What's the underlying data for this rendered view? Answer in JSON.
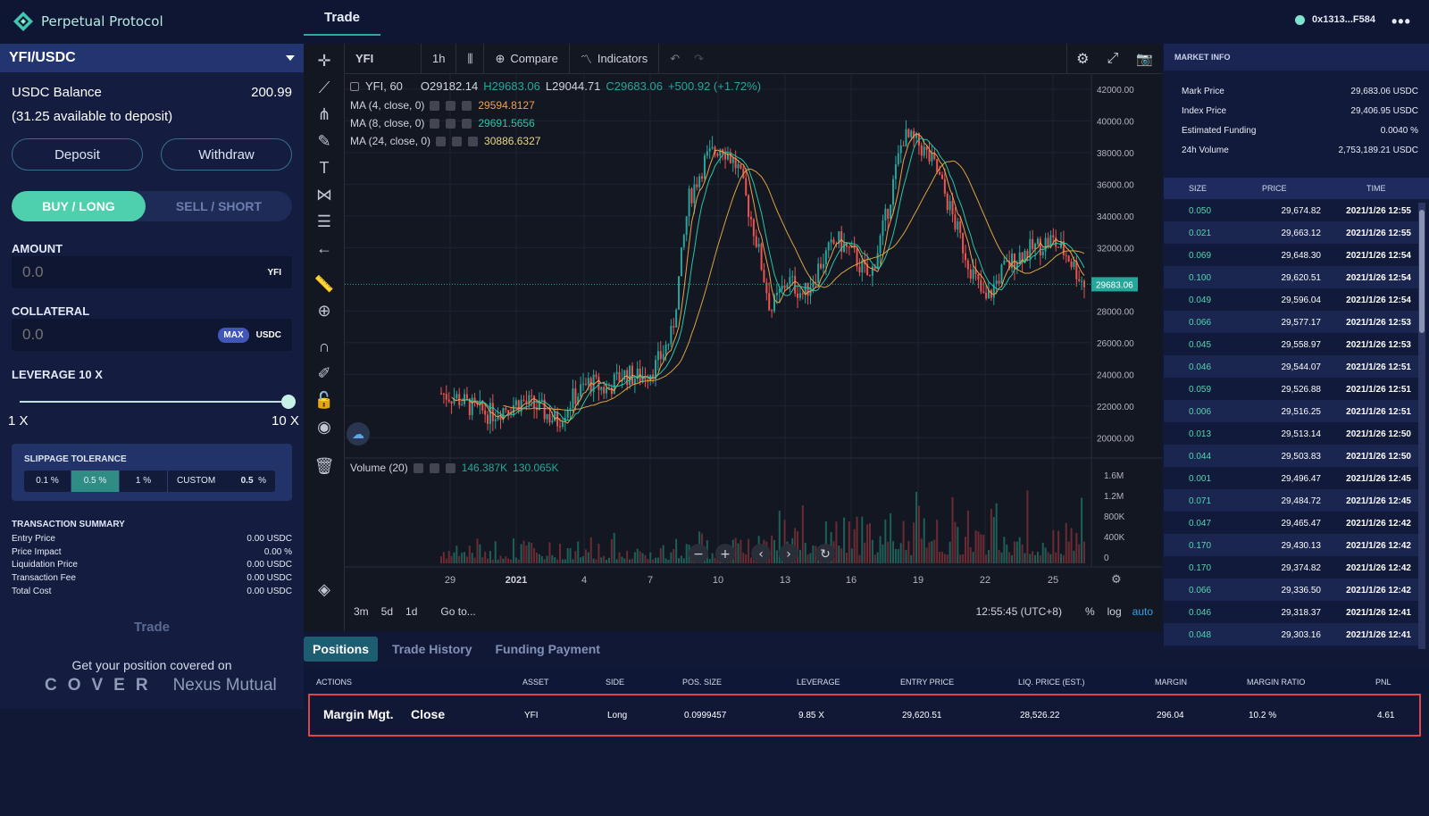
{
  "brand": {
    "name": "Perpetual Protocol"
  },
  "nav": {
    "tab": "Trade"
  },
  "wallet": {
    "address": "0x1313...F584",
    "more": "•••"
  },
  "left": {
    "pair": "YFI/USDC",
    "balance_label": "USDC Balance",
    "balance_value": "200.99",
    "available": "(31.25 available to deposit)",
    "deposit": "Deposit",
    "withdraw": "Withdraw",
    "buy": "BUY / LONG",
    "sell": "SELL / SHORT",
    "amount_label": "AMOUNT",
    "amount_placeholder": "0.0",
    "amount_unit": "YFI",
    "collateral_label": "COLLATERAL",
    "collateral_placeholder": "0.0",
    "max": "MAX",
    "collateral_unit": "USDC",
    "leverage_label": "LEVERAGE 10 X",
    "leverage_min": "1 X",
    "leverage_max": "10 X",
    "leverage_value": 1.0,
    "slippage_title": "SLIPPAGE TOLERANCE",
    "slippage_opts": [
      "0.1 %",
      "0.5 %",
      "1 %",
      "CUSTOM"
    ],
    "slippage_custom_value": "0.5",
    "slippage_custom_unit": "%",
    "tx_title": "TRANSACTION SUMMARY",
    "tx": [
      {
        "label": "Entry Price",
        "value": "0.00 USDC"
      },
      {
        "label": "Price Impact",
        "value": "0.00 %"
      },
      {
        "label": "Liquidation Price",
        "value": "0.00 USDC"
      },
      {
        "label": "Transaction Fee",
        "value": "0.00 USDC"
      },
      {
        "label": "Total Cost",
        "value": "0.00 USDC"
      }
    ],
    "trade_button": "Trade",
    "cover_text": "Get your position covered on",
    "cover_logo": "COVER",
    "nexus_logo": "Nexus Mutual"
  },
  "chart": {
    "symbol": "YFI",
    "interval": "1h",
    "compare": "Compare",
    "indicators": "Indicators",
    "legend_title": "YFI, 60",
    "o": "O29182.14",
    "h": "H29683.06",
    "l": "L29044.71",
    "c": "C29683.06",
    "change": "+500.92 (+1.72%)",
    "ma1_label": "MA (4, close, 0)",
    "ma1_value": "29594.8127",
    "ma2_label": "MA (8, close, 0)",
    "ma2_value": "29691.5656",
    "ma3_label": "MA (24, close, 0)",
    "ma3_value": "30886.6327",
    "volume_label": "Volume (20)",
    "vol1": "146.387K",
    "vol2": "130.065K",
    "last_price_tag": "29683.06",
    "price_ticks": [
      "42000.00",
      "40000.00",
      "38000.00",
      "36000.00",
      "34000.00",
      "32000.00",
      "28000.00",
      "26000.00",
      "24000.00",
      "22000.00",
      "20000.00"
    ],
    "volume_ticks": [
      "1.6M",
      "1.2M",
      "800K",
      "400K",
      "0"
    ],
    "date_ticks": [
      "29",
      "2021",
      "4",
      "7",
      "10",
      "13",
      "16",
      "19",
      "22",
      "25"
    ],
    "ranges": [
      "3m",
      "5d",
      "1d"
    ],
    "goto": "Go to...",
    "time": "12:55:45 (UTC+8)",
    "pct": "%",
    "log": "log",
    "auto": "auto"
  },
  "chart_data": {
    "type": "candlestick",
    "ylim": [
      19000,
      42500
    ],
    "price_ticks": [
      20000,
      22000,
      24000,
      26000,
      28000,
      32000,
      34000,
      36000,
      38000,
      40000,
      42000
    ],
    "x": [
      "29",
      "2021",
      "4",
      "7",
      "10",
      "13",
      "16",
      "19",
      "22",
      "25"
    ],
    "close_trend": [
      22800,
      22500,
      21800,
      21500,
      22000,
      22300,
      21800,
      21000,
      22500,
      23500,
      23000,
      24000,
      23800,
      24500,
      26500,
      35000,
      37500,
      38500,
      37000,
      33000,
      28000,
      30000,
      29000,
      31000,
      32500,
      31500,
      30000,
      34000,
      39000,
      38500,
      37000,
      34000,
      31000,
      28500,
      30500,
      31500,
      32000,
      32500,
      31500,
      29683.06
    ]
  },
  "market": {
    "title": "MARKET INFO",
    "rows": [
      {
        "label": "Mark Price",
        "value": "29,683.06 USDC"
      },
      {
        "label": "Index Price",
        "value": "29,406.95 USDC"
      },
      {
        "label": "Estimated Funding",
        "value": "0.0040 %"
      },
      {
        "label": "24h Volume",
        "value": "2,753,189.21 USDC"
      }
    ],
    "headers": {
      "size": "SIZE",
      "price": "PRICE",
      "time": "TIME"
    },
    "trades": [
      {
        "size": "0.050",
        "price": "29,674.82",
        "time": "2021/1/26 12:55"
      },
      {
        "size": "0.021",
        "price": "29,663.12",
        "time": "2021/1/26 12:55"
      },
      {
        "size": "0.069",
        "price": "29,648.30",
        "time": "2021/1/26 12:54"
      },
      {
        "size": "0.100",
        "price": "29,620.51",
        "time": "2021/1/26 12:54"
      },
      {
        "size": "0.049",
        "price": "29,596.04",
        "time": "2021/1/26 12:54"
      },
      {
        "size": "0.066",
        "price": "29,577.17",
        "time": "2021/1/26 12:53"
      },
      {
        "size": "0.045",
        "price": "29,558.97",
        "time": "2021/1/26 12:53"
      },
      {
        "size": "0.046",
        "price": "29,544.07",
        "time": "2021/1/26 12:51"
      },
      {
        "size": "0.059",
        "price": "29,526.88",
        "time": "2021/1/26 12:51"
      },
      {
        "size": "0.006",
        "price": "29,516.25",
        "time": "2021/1/26 12:51"
      },
      {
        "size": "0.013",
        "price": "29,513.14",
        "time": "2021/1/26 12:50"
      },
      {
        "size": "0.044",
        "price": "29,503.83",
        "time": "2021/1/26 12:50"
      },
      {
        "size": "0.001",
        "price": "29,496.47",
        "time": "2021/1/26 12:45"
      },
      {
        "size": "0.071",
        "price": "29,484.72",
        "time": "2021/1/26 12:45"
      },
      {
        "size": "0.047",
        "price": "29,465.47",
        "time": "2021/1/26 12:42"
      },
      {
        "size": "0.170",
        "price": "29,430.13",
        "time": "2021/1/26 12:42"
      },
      {
        "size": "0.170",
        "price": "29,374.82",
        "time": "2021/1/26 12:42"
      },
      {
        "size": "0.066",
        "price": "29,336.50",
        "time": "2021/1/26 12:42"
      },
      {
        "size": "0.046",
        "price": "29,318.37",
        "time": "2021/1/26 12:41"
      },
      {
        "size": "0.048",
        "price": "29,303.16",
        "time": "2021/1/26 12:41"
      }
    ]
  },
  "bottom": {
    "tabs": [
      "Positions",
      "Trade History",
      "Funding Payment"
    ],
    "headers": [
      "ACTIONS",
      "ASSET",
      "SIDE",
      "POS. SIZE",
      "LEVERAGE",
      "ENTRY PRICE",
      "LIQ. PRICE (EST.)",
      "MARGIN",
      "MARGIN RATIO",
      "PNL"
    ],
    "row": {
      "margin_mgt": "Margin Mgt.",
      "close": "Close",
      "asset": "YFI",
      "side": "Long",
      "size": "0.0999457",
      "leverage": "9.85 X",
      "entry": "29,620.51",
      "liq": "28,526.22",
      "margin": "296.04",
      "ratio": "10.2 %",
      "pnl": "4.61"
    }
  },
  "colors": {
    "accent": "#4dd0ab",
    "up": "#26a69a",
    "down": "#ef5350",
    "ma_orange": "#f0a04b"
  }
}
